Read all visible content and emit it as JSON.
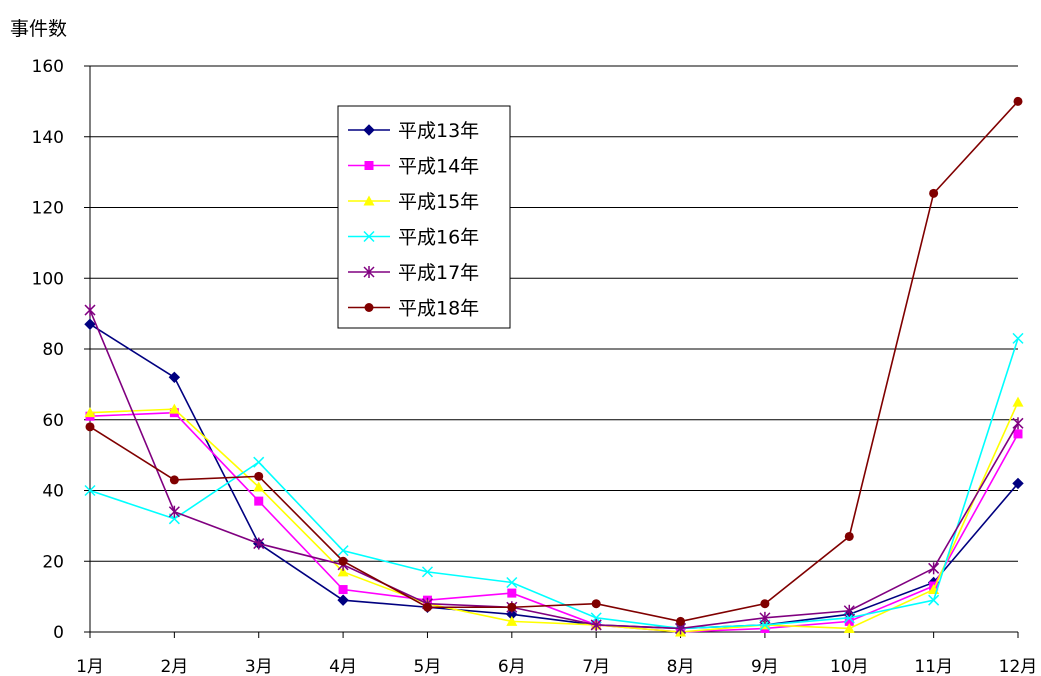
{
  "chart_data": {
    "type": "line",
    "title": "",
    "xlabel": "",
    "ylabel": "事件数",
    "ylim": [
      0,
      160
    ],
    "yticks": [
      0,
      20,
      40,
      60,
      80,
      100,
      120,
      140,
      160
    ],
    "grid": true,
    "legend_position": "top-center",
    "categories": [
      "1月",
      "2月",
      "3月",
      "4月",
      "5月",
      "6月",
      "7月",
      "8月",
      "9月",
      "10月",
      "11月",
      "12月"
    ],
    "series": [
      {
        "name": "平成13年",
        "color": "#000080",
        "marker": "diamond",
        "values": [
          87,
          72,
          25,
          9,
          7,
          5,
          2,
          1,
          2,
          5,
          14,
          42
        ]
      },
      {
        "name": "平成14年",
        "color": "#FF00FF",
        "marker": "square",
        "values": [
          61,
          62,
          37,
          12,
          9,
          11,
          2,
          0,
          1,
          3,
          13,
          56
        ]
      },
      {
        "name": "平成15年",
        "color": "#FFFF00",
        "marker": "triangle",
        "values": [
          62,
          63,
          41,
          17,
          8,
          3,
          2,
          0,
          2,
          1,
          12,
          65
        ]
      },
      {
        "name": "平成16年",
        "color": "#00FFFF",
        "marker": "x",
        "values": [
          40,
          32,
          48,
          23,
          17,
          14,
          4,
          1,
          2,
          4,
          9,
          83
        ]
      },
      {
        "name": "平成17年",
        "color": "#800080",
        "marker": "star",
        "values": [
          91,
          34,
          25,
          19,
          8,
          7,
          2,
          1,
          4,
          6,
          18,
          59
        ]
      },
      {
        "name": "平成18年",
        "color": "#800000",
        "marker": "circle",
        "values": [
          58,
          43,
          44,
          20,
          7,
          7,
          8,
          3,
          8,
          27,
          124,
          150
        ]
      }
    ]
  }
}
